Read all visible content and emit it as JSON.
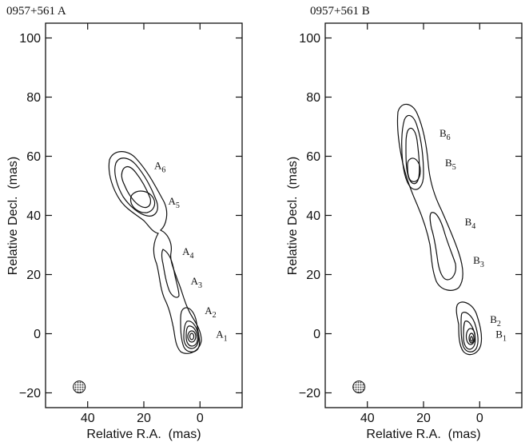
{
  "chart_data": [
    {
      "type": "contour",
      "title": "0957+561 A",
      "xlabel": "Relative R.A.  (mas)",
      "ylabel": "Relative Decl.  (mas)",
      "xlim": [
        55,
        -15
      ],
      "ylim": [
        -25,
        105
      ],
      "x_ticks": [
        40,
        20,
        0
      ],
      "y_ticks": [
        -20,
        0,
        20,
        40,
        60,
        80,
        100
      ],
      "x_axis_reversed": true,
      "components": [
        {
          "label": "A",
          "sub": "1",
          "x": 0,
          "y": 0
        },
        {
          "label": "A",
          "sub": "2",
          "x": 4,
          "y": 8
        },
        {
          "label": "A",
          "sub": "3",
          "x": 9,
          "y": 18
        },
        {
          "label": "A",
          "sub": "4",
          "x": 12,
          "y": 28
        },
        {
          "label": "A",
          "sub": "5",
          "x": 17,
          "y": 45
        },
        {
          "label": "A",
          "sub": "6",
          "x": 22,
          "y": 57
        }
      ],
      "beam": {
        "x": 43,
        "y": -18
      }
    },
    {
      "type": "contour",
      "title": "0957+561 B",
      "xlabel": "Relative R.A.  (mas)",
      "ylabel": "Relative Decl.  (mas)",
      "xlim": [
        55,
        -15
      ],
      "ylim": [
        -25,
        105
      ],
      "x_ticks": [
        40,
        20,
        0
      ],
      "y_ticks": [
        -20,
        0,
        20,
        40,
        60,
        80,
        100
      ],
      "x_axis_reversed": true,
      "components": [
        {
          "label": "B",
          "sub": "1",
          "x": 0,
          "y": 0
        },
        {
          "label": "B",
          "sub": "2",
          "x": 2,
          "y": 5
        },
        {
          "label": "B",
          "sub": "3",
          "x": 8,
          "y": 25
        },
        {
          "label": "B",
          "sub": "4",
          "x": 11,
          "y": 38
        },
        {
          "label": "B",
          "sub": "5",
          "x": 18,
          "y": 58
        },
        {
          "label": "B",
          "sub": "6",
          "x": 20,
          "y": 68
        }
      ],
      "beam": {
        "x": 43,
        "y": -18
      }
    }
  ],
  "colors": {
    "ink": "#111111",
    "beam_fill": "#9a9a9a",
    "background": "#ffffff"
  }
}
